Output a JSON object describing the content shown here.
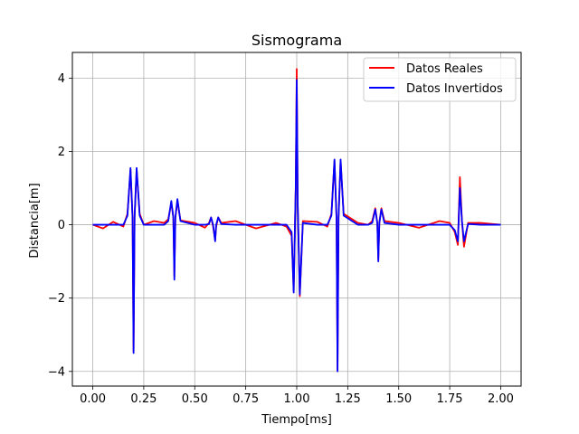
{
  "chart_data": {
    "type": "line",
    "title": "Sismograma",
    "xlabel": "Tiempo[ms]",
    "ylabel": "Distancia[m]",
    "xlim": [
      -0.1,
      2.1
    ],
    "ylim": [
      -4.4,
      4.7
    ],
    "xticks": [
      0.0,
      0.25,
      0.5,
      0.75,
      1.0,
      1.25,
      1.5,
      1.75,
      2.0
    ],
    "xtick_labels": [
      "0.00",
      "0.25",
      "0.50",
      "0.75",
      "1.00",
      "1.25",
      "1.50",
      "1.75",
      "2.00"
    ],
    "yticks": [
      -4,
      -2,
      0,
      2,
      4
    ],
    "ytick_labels": [
      "−4",
      "−2",
      "0",
      "2",
      "4"
    ],
    "grid": true,
    "legend_position": "top-right",
    "series": [
      {
        "name": "Datos Reales",
        "color": "#ff0000",
        "x": [
          0.0,
          0.05,
          0.1,
          0.15,
          0.17,
          0.185,
          0.195,
          0.2,
          0.205,
          0.215,
          0.23,
          0.25,
          0.3,
          0.35,
          0.37,
          0.385,
          0.395,
          0.4,
          0.405,
          0.415,
          0.43,
          0.5,
          0.55,
          0.57,
          0.58,
          0.59,
          0.6,
          0.605,
          0.615,
          0.63,
          0.7,
          0.8,
          0.9,
          0.95,
          0.975,
          0.985,
          0.995,
          1.0,
          1.005,
          1.015,
          1.03,
          1.1,
          1.15,
          1.17,
          1.185,
          1.195,
          1.2,
          1.205,
          1.215,
          1.23,
          1.3,
          1.35,
          1.37,
          1.385,
          1.395,
          1.4,
          1.405,
          1.415,
          1.43,
          1.5,
          1.6,
          1.7,
          1.75,
          1.775,
          1.79,
          1.8,
          1.81,
          1.82,
          1.84,
          1.9,
          2.0
        ],
        "y": [
          0.0,
          -0.1,
          0.08,
          -0.05,
          0.3,
          1.5,
          0.2,
          -3.45,
          0.2,
          1.5,
          0.3,
          0.0,
          0.1,
          0.05,
          0.15,
          0.6,
          0.2,
          -1.4,
          0.2,
          0.65,
          0.12,
          0.05,
          -0.08,
          0.05,
          0.2,
          -0.05,
          -0.42,
          -0.05,
          0.2,
          0.05,
          0.1,
          -0.1,
          0.05,
          -0.05,
          -0.3,
          -1.8,
          1.0,
          4.25,
          0.5,
          -1.95,
          0.1,
          0.08,
          -0.05,
          0.3,
          1.75,
          0.2,
          -3.95,
          0.2,
          1.75,
          0.3,
          0.05,
          0.0,
          0.1,
          0.45,
          0.05,
          -0.95,
          0.05,
          0.45,
          0.1,
          0.05,
          -0.08,
          0.1,
          0.05,
          -0.2,
          -0.55,
          1.3,
          0.1,
          -0.6,
          0.05,
          0.05,
          0.0
        ]
      },
      {
        "name": "Datos Invertidos",
        "color": "#0000ff",
        "x": [
          0.0,
          0.05,
          0.1,
          0.15,
          0.17,
          0.185,
          0.195,
          0.2,
          0.205,
          0.215,
          0.23,
          0.25,
          0.3,
          0.35,
          0.37,
          0.385,
          0.395,
          0.4,
          0.405,
          0.415,
          0.43,
          0.5,
          0.55,
          0.57,
          0.58,
          0.59,
          0.6,
          0.605,
          0.615,
          0.63,
          0.7,
          0.8,
          0.9,
          0.95,
          0.975,
          0.985,
          0.995,
          1.0,
          1.005,
          1.015,
          1.03,
          1.1,
          1.15,
          1.17,
          1.185,
          1.195,
          1.2,
          1.205,
          1.215,
          1.23,
          1.3,
          1.35,
          1.37,
          1.385,
          1.395,
          1.4,
          1.405,
          1.415,
          1.43,
          1.5,
          1.6,
          1.7,
          1.75,
          1.775,
          1.79,
          1.8,
          1.81,
          1.82,
          1.84,
          1.9,
          2.0
        ],
        "y": [
          0.0,
          0.0,
          0.0,
          0.0,
          0.25,
          1.55,
          0.2,
          -3.5,
          0.2,
          1.55,
          0.25,
          0.0,
          0.0,
          0.0,
          0.1,
          0.65,
          0.2,
          -1.5,
          0.2,
          0.7,
          0.1,
          0.0,
          0.0,
          0.02,
          0.2,
          0.0,
          -0.45,
          0.0,
          0.2,
          0.02,
          0.0,
          0.0,
          0.0,
          0.0,
          -0.2,
          -1.85,
          1.0,
          3.95,
          0.5,
          -1.9,
          0.05,
          0.0,
          0.0,
          0.25,
          1.78,
          0.2,
          -4.0,
          0.2,
          1.78,
          0.25,
          0.0,
          0.0,
          0.05,
          0.42,
          0.05,
          -1.0,
          0.05,
          0.42,
          0.05,
          0.0,
          0.0,
          0.0,
          0.0,
          -0.15,
          -0.45,
          1.0,
          0.1,
          -0.45,
          0.02,
          0.0,
          0.0
        ]
      }
    ]
  }
}
